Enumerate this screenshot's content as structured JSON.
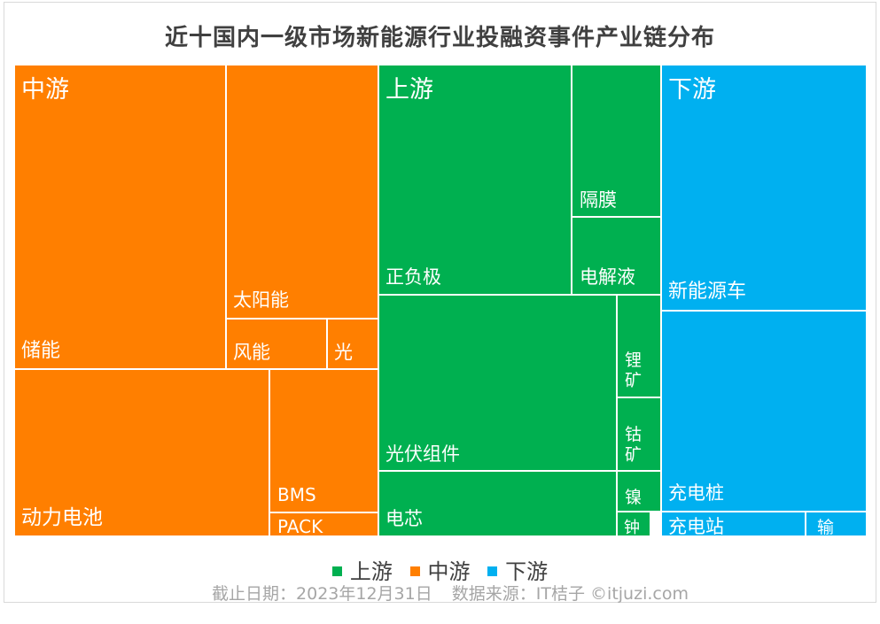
{
  "title": "近十国内一级市场新能源行业投融资事件产业链分布",
  "colors": {
    "上游": "#00b050",
    "中游": "#ff7f00",
    "下游": "#00b0f0"
  },
  "legend": [
    "上游",
    "中游",
    "下游"
  ],
  "footer": {
    "date": "截止日期：2023年12月31日",
    "source": "数据来源：IT桔子 ©itjuzi.com"
  },
  "chart_data": {
    "type": "treemap",
    "title": "近十国内一级市场新能源行业投融资事件产业链分布",
    "groups": [
      {
        "name": "中游",
        "leaves": [
          "储能",
          "太阳能",
          "风能",
          "光",
          "动力电池",
          "BMS",
          "PACK"
        ]
      },
      {
        "name": "上游",
        "leaves": [
          "正负极",
          "隔膜",
          "电解液",
          "光伏组件",
          "锂矿",
          "钴矿",
          "电芯",
          "镍",
          "钟"
        ]
      },
      {
        "name": "下游",
        "leaves": [
          "新能源车",
          "充电桩",
          "充电站",
          "输"
        ]
      }
    ]
  }
}
